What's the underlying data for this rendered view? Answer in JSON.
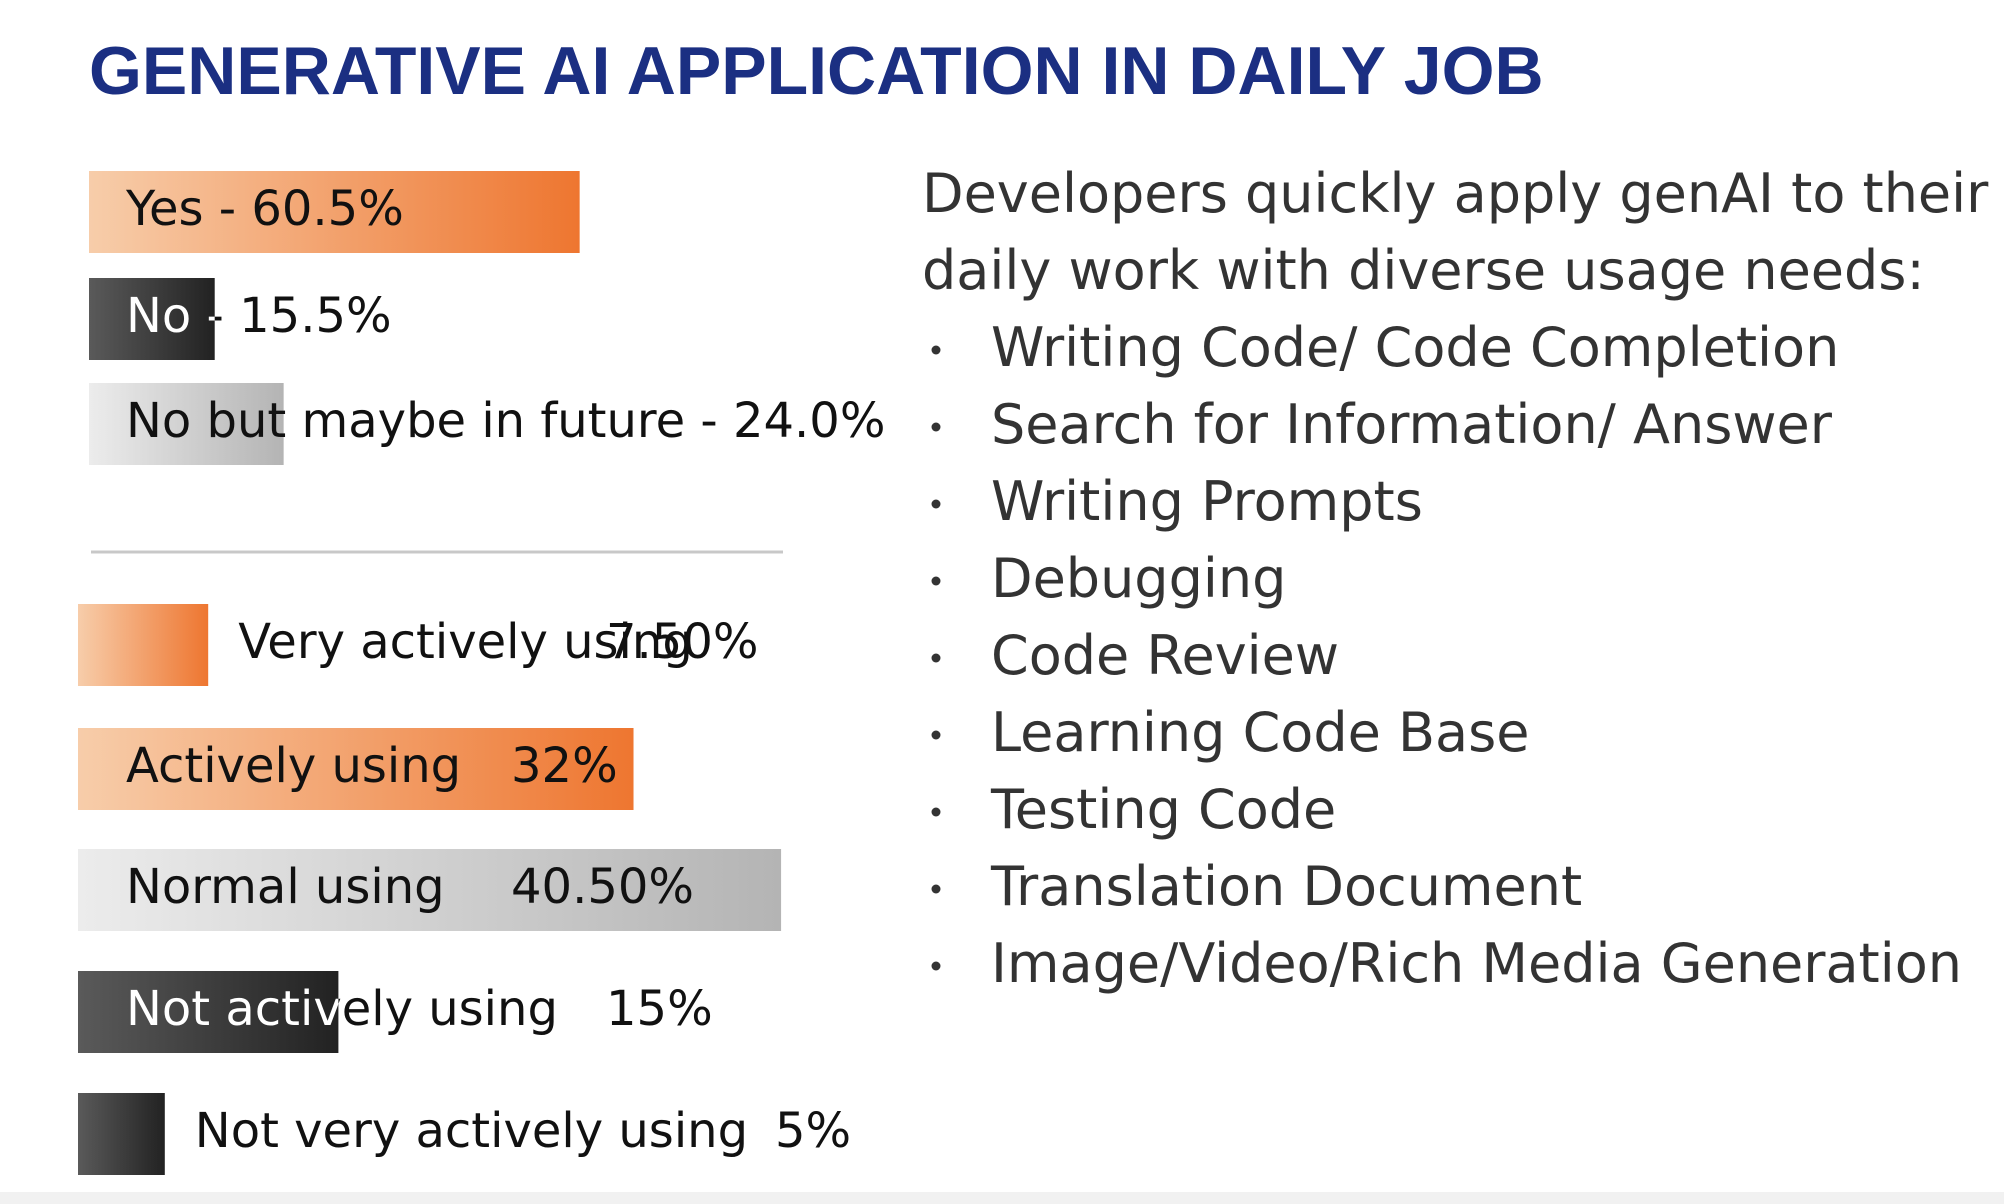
{
  "title": "GENERATIVE AI APPLICATION IN DAILY JOB",
  "chart_data": [
    {
      "type": "bar",
      "orientation": "horizontal",
      "categories": [
        "Yes - 60.5%",
        "No - 15.5%",
        "No but maybe in future - 24.0%"
      ],
      "values": [
        60.5,
        15.5,
        24.0
      ],
      "colors": [
        [
          "#f7cdaa",
          "#ee7630"
        ],
        [
          "#5a5a5a",
          "#222222"
        ],
        [
          "#ececec",
          "#b4b4b4"
        ]
      ]
    },
    {
      "type": "bar",
      "orientation": "horizontal",
      "categories": [
        "Very actively using",
        "Actively using",
        "Normal using",
        "Not actively using",
        "Not very actively using"
      ],
      "values": [
        7.5,
        32,
        40.5,
        15,
        5
      ],
      "value_labels": [
        "7.50%",
        "32%",
        "40.50%",
        "15%",
        "5%"
      ],
      "colors": [
        [
          "#f7cdaa",
          "#ee7630"
        ],
        [
          "#f7cdaa",
          "#ee7630"
        ],
        [
          "#ececec",
          "#b4b4b4"
        ],
        [
          "#5a5a5a",
          "#222222"
        ],
        [
          "#5a5a5a",
          "#222222"
        ]
      ]
    }
  ],
  "notes": {
    "intro": [
      "Developers quickly apply genAI to their",
      "daily work with diverse usage needs:"
    ],
    "bullets": [
      "Writing Code/ Code Completion",
      "Search for Information/ Answer",
      "Writing Prompts",
      "Debugging",
      "Code Review",
      "Learning Code Base",
      "Testing Code",
      "Translation Document",
      "Image/Video/Rich Media Generation"
    ]
  }
}
